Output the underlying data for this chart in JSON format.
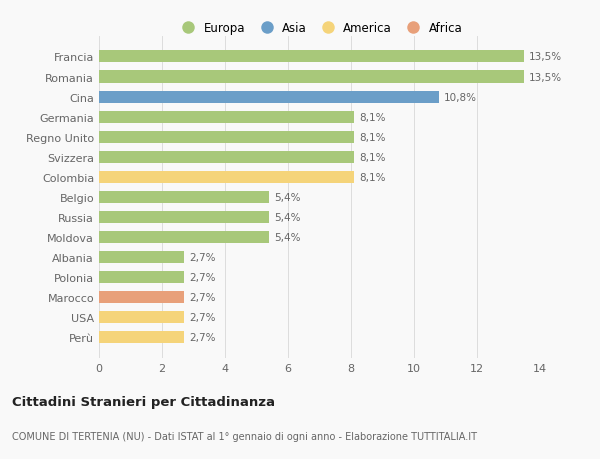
{
  "categories": [
    "Perù",
    "USA",
    "Marocco",
    "Polonia",
    "Albania",
    "Moldova",
    "Russia",
    "Belgio",
    "Colombia",
    "Svizzera",
    "Regno Unito",
    "Germania",
    "Cina",
    "Romania",
    "Francia"
  ],
  "values": [
    2.7,
    2.7,
    2.7,
    2.7,
    2.7,
    5.4,
    5.4,
    5.4,
    8.1,
    8.1,
    8.1,
    8.1,
    10.8,
    13.5,
    13.5
  ],
  "continents": [
    "America",
    "America",
    "Africa",
    "Europa",
    "Europa",
    "Europa",
    "Europa",
    "Europa",
    "America",
    "Europa",
    "Europa",
    "Europa",
    "Asia",
    "Europa",
    "Europa"
  ],
  "labels": [
    "2,7%",
    "2,7%",
    "2,7%",
    "2,7%",
    "2,7%",
    "5,4%",
    "5,4%",
    "5,4%",
    "8,1%",
    "8,1%",
    "8,1%",
    "8,1%",
    "10,8%",
    "13,5%",
    "13,5%"
  ],
  "colors": {
    "Europa": "#a8c87a",
    "Asia": "#6b9ec8",
    "America": "#f5d47a",
    "Africa": "#e8a07a"
  },
  "legend_order": [
    "Europa",
    "Asia",
    "America",
    "Africa"
  ],
  "title": "Cittadini Stranieri per Cittadinanza",
  "subtitle": "COMUNE DI TERTENIA (NU) - Dati ISTAT al 1° gennaio di ogni anno - Elaborazione TUTTITALIA.IT",
  "xlim": [
    0,
    14
  ],
  "xticks": [
    0,
    2,
    4,
    6,
    8,
    10,
    12,
    14
  ],
  "bg_color": "#f9f9f9",
  "grid_color": "#dddddd",
  "label_color": "#666666",
  "tick_color": "#999999"
}
